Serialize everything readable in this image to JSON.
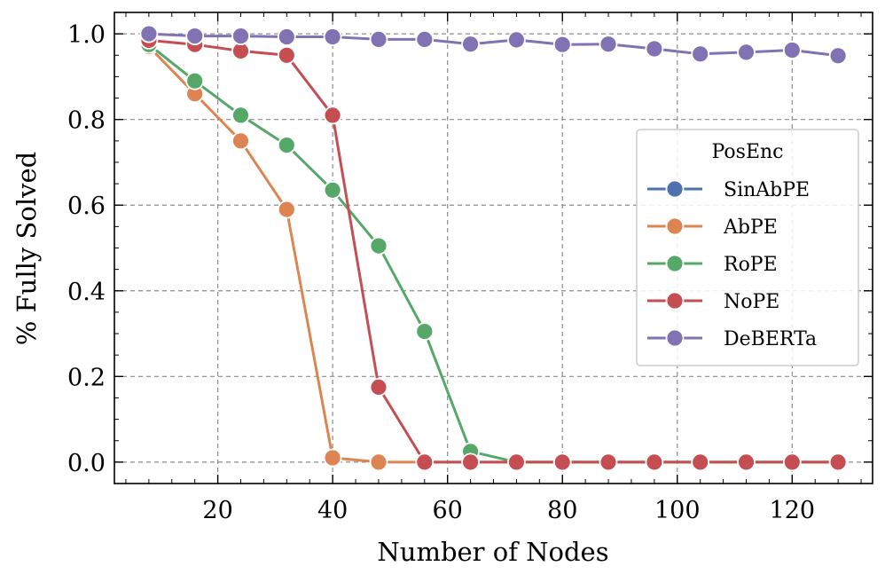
{
  "chart_data": {
    "type": "line",
    "xlabel": "Number of Nodes",
    "ylabel": "% Fully Solved",
    "xlim": [
      2,
      134
    ],
    "ylim": [
      -0.05,
      1.05
    ],
    "xticks": [
      20,
      40,
      60,
      80,
      100,
      120
    ],
    "yticks": [
      0.0,
      0.2,
      0.4,
      0.6,
      0.8,
      1.0
    ],
    "x_tick_labels": [
      "20",
      "40",
      "60",
      "80",
      "100",
      "120"
    ],
    "y_tick_labels": [
      "0.0",
      "0.2",
      "0.4",
      "0.6",
      "0.8",
      "1.0"
    ],
    "grid": true,
    "legend": {
      "title": "PosEnc",
      "placement": "center-right"
    },
    "x": [
      8,
      16,
      24,
      32,
      40,
      48,
      56,
      64,
      72,
      80,
      88,
      96,
      104,
      112,
      120,
      128
    ],
    "series": [
      {
        "name": "SinAbPE",
        "color": "#4c72b0",
        "values": [
          null,
          null,
          null,
          null,
          null,
          null,
          null,
          null,
          null,
          null,
          null,
          null,
          null,
          null,
          null,
          null
        ]
      },
      {
        "name": "AbPE",
        "color": "#dd8452",
        "values": [
          0.97,
          0.86,
          0.75,
          0.59,
          0.01,
          0.0,
          0.0,
          0.0,
          0.0,
          0.0,
          0.0,
          0.0,
          0.0,
          0.0,
          0.0,
          0.0
        ]
      },
      {
        "name": "RoPE",
        "color": "#55a868",
        "values": [
          0.975,
          0.89,
          0.81,
          0.74,
          0.635,
          0.505,
          0.305,
          0.025,
          0.0,
          0.0,
          0.0,
          0.0,
          0.0,
          0.0,
          0.0,
          0.0
        ]
      },
      {
        "name": "NoPE",
        "color": "#c44e52",
        "values": [
          0.985,
          0.975,
          0.96,
          0.95,
          0.81,
          0.175,
          0.0,
          0.0,
          0.0,
          0.0,
          0.0,
          0.0,
          0.0,
          0.0,
          0.0,
          0.0
        ]
      },
      {
        "name": "DeBERTa",
        "color": "#8172b3",
        "values": [
          1.0,
          0.995,
          0.995,
          0.993,
          0.993,
          0.987,
          0.987,
          0.976,
          0.986,
          0.975,
          0.976,
          0.965,
          0.953,
          0.957,
          0.962,
          0.949
        ]
      }
    ]
  }
}
